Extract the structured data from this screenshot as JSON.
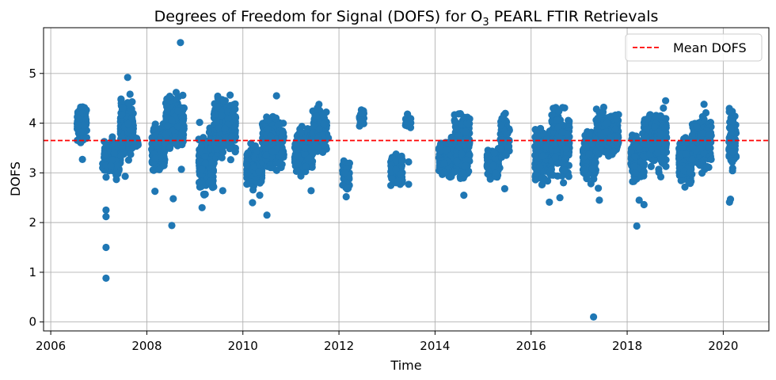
{
  "chart_data": {
    "type": "scatter",
    "title": "Degrees of Freedom for Signal (DOFS) for O₃ PEARL FTIR Retrievals",
    "title_main": "Degrees of Freedom for Signal (DOFS) for O",
    "title_sub": "3",
    "title_rest": " PEARL FTIR Retrievals",
    "xlabel": "Time",
    "ylabel": "DOFS",
    "xlim": [
      2005.85,
      2020.95
    ],
    "ylim": [
      -0.18,
      5.92
    ],
    "xticks": [
      2006,
      2008,
      2010,
      2012,
      2014,
      2016,
      2018,
      2020
    ],
    "xtick_labels": [
      "2006",
      "2008",
      "2010",
      "2012",
      "2014",
      "2016",
      "2018",
      "2020"
    ],
    "yticks": [
      0,
      1,
      2,
      3,
      4,
      5
    ],
    "ytick_labels": [
      "0",
      "1",
      "2",
      "3",
      "4",
      "5"
    ],
    "grid": true,
    "legend_position": "top-right",
    "mean_line": {
      "name": "Mean DOFS",
      "value": 3.65,
      "color": "#ff0000"
    },
    "point_color": "#1f77b4",
    "clusters": [
      {
        "x_start": 2006.55,
        "x_end": 2006.75,
        "y_min": 3.55,
        "y_max": 4.5,
        "count": 110
      },
      {
        "x_start": 2007.08,
        "x_end": 2007.45,
        "y_min": 2.8,
        "y_max": 3.8,
        "count": 150
      },
      {
        "x_start": 2007.45,
        "x_end": 2007.72,
        "y_min": 3.1,
        "y_max": 4.7,
        "count": 170
      },
      {
        "x_start": 2007.72,
        "x_end": 2007.82,
        "y_min": 3.45,
        "y_max": 3.75,
        "count": 15
      },
      {
        "x_start": 2008.1,
        "x_end": 2008.38,
        "y_min": 2.9,
        "y_max": 4.1,
        "count": 120
      },
      {
        "x_start": 2008.38,
        "x_end": 2008.78,
        "y_min": 3.3,
        "y_max": 4.75,
        "count": 190
      },
      {
        "x_start": 2009.08,
        "x_end": 2009.4,
        "y_min": 2.4,
        "y_max": 4.1,
        "count": 200
      },
      {
        "x_start": 2009.4,
        "x_end": 2009.85,
        "y_min": 3.1,
        "y_max": 4.65,
        "count": 230
      },
      {
        "x_start": 2010.08,
        "x_end": 2010.4,
        "y_min": 2.6,
        "y_max": 3.7,
        "count": 220
      },
      {
        "x_start": 2010.4,
        "x_end": 2010.85,
        "y_min": 2.9,
        "y_max": 4.3,
        "count": 220
      },
      {
        "x_start": 2011.08,
        "x_end": 2011.45,
        "y_min": 2.9,
        "y_max": 4.0,
        "count": 210
      },
      {
        "x_start": 2011.45,
        "x_end": 2011.75,
        "y_min": 3.2,
        "y_max": 4.55,
        "count": 150
      },
      {
        "x_start": 2012.08,
        "x_end": 2012.22,
        "y_min": 2.6,
        "y_max": 3.4,
        "count": 70
      },
      {
        "x_start": 2012.42,
        "x_end": 2012.52,
        "y_min": 3.85,
        "y_max": 4.35,
        "count": 40
      },
      {
        "x_start": 2013.08,
        "x_end": 2013.32,
        "y_min": 2.6,
        "y_max": 3.5,
        "count": 100
      },
      {
        "x_start": 2013.38,
        "x_end": 2013.5,
        "y_min": 3.85,
        "y_max": 4.2,
        "count": 30
      },
      {
        "x_start": 2014.08,
        "x_end": 2014.4,
        "y_min": 2.8,
        "y_max": 3.8,
        "count": 180
      },
      {
        "x_start": 2014.4,
        "x_end": 2014.72,
        "y_min": 2.7,
        "y_max": 4.45,
        "count": 210
      },
      {
        "x_start": 2015.08,
        "x_end": 2015.35,
        "y_min": 2.8,
        "y_max": 3.6,
        "count": 120
      },
      {
        "x_start": 2015.35,
        "x_end": 2015.55,
        "y_min": 3.1,
        "y_max": 4.3,
        "count": 100
      },
      {
        "x_start": 2016.08,
        "x_end": 2016.42,
        "y_min": 2.6,
        "y_max": 4.1,
        "count": 220
      },
      {
        "x_start": 2016.42,
        "x_end": 2016.8,
        "y_min": 2.7,
        "y_max": 4.5,
        "count": 230
      },
      {
        "x_start": 2017.08,
        "x_end": 2017.35,
        "y_min": 2.7,
        "y_max": 4.0,
        "count": 150
      },
      {
        "x_start": 2017.35,
        "x_end": 2017.82,
        "y_min": 3.2,
        "y_max": 4.4,
        "count": 250
      },
      {
        "x_start": 2018.08,
        "x_end": 2018.35,
        "y_min": 2.7,
        "y_max": 3.9,
        "count": 200
      },
      {
        "x_start": 2018.35,
        "x_end": 2018.82,
        "y_min": 2.9,
        "y_max": 4.45,
        "count": 270
      },
      {
        "x_start": 2019.08,
        "x_end": 2019.35,
        "y_min": 2.6,
        "y_max": 3.8,
        "count": 200
      },
      {
        "x_start": 2019.35,
        "x_end": 2019.75,
        "y_min": 2.9,
        "y_max": 4.3,
        "count": 220
      },
      {
        "x_start": 2020.12,
        "x_end": 2020.27,
        "y_min": 2.9,
        "y_max": 4.4,
        "count": 110
      }
    ],
    "outliers": [
      {
        "x": 2006.66,
        "y": 3.27
      },
      {
        "x": 2007.15,
        "y": 2.25
      },
      {
        "x": 2007.15,
        "y": 2.12
      },
      {
        "x": 2007.15,
        "y": 1.5
      },
      {
        "x": 2007.15,
        "y": 0.88
      },
      {
        "x": 2007.6,
        "y": 4.92
      },
      {
        "x": 2007.55,
        "y": 2.93
      },
      {
        "x": 2008.17,
        "y": 2.63
      },
      {
        "x": 2008.55,
        "y": 2.48
      },
      {
        "x": 2008.52,
        "y": 1.94
      },
      {
        "x": 2008.7,
        "y": 5.62
      },
      {
        "x": 2008.72,
        "y": 3.07
      },
      {
        "x": 2009.15,
        "y": 2.3
      },
      {
        "x": 2009.58,
        "y": 2.64
      },
      {
        "x": 2010.2,
        "y": 2.4
      },
      {
        "x": 2010.35,
        "y": 2.55
      },
      {
        "x": 2010.5,
        "y": 2.15
      },
      {
        "x": 2010.7,
        "y": 4.55
      },
      {
        "x": 2011.42,
        "y": 2.64
      },
      {
        "x": 2011.78,
        "y": 3.7
      },
      {
        "x": 2012.15,
        "y": 2.52
      },
      {
        "x": 2013.45,
        "y": 3.22
      },
      {
        "x": 2013.45,
        "y": 2.77
      },
      {
        "x": 2014.6,
        "y": 2.55
      },
      {
        "x": 2015.45,
        "y": 2.68
      },
      {
        "x": 2016.38,
        "y": 2.41
      },
      {
        "x": 2016.6,
        "y": 2.5
      },
      {
        "x": 2017.3,
        "y": 0.1
      },
      {
        "x": 2017.42,
        "y": 2.45
      },
      {
        "x": 2017.4,
        "y": 2.69
      },
      {
        "x": 2018.2,
        "y": 1.93
      },
      {
        "x": 2018.25,
        "y": 2.45
      },
      {
        "x": 2018.35,
        "y": 2.36
      },
      {
        "x": 2018.7,
        "y": 2.92
      },
      {
        "x": 2018.8,
        "y": 4.45
      },
      {
        "x": 2019.6,
        "y": 4.38
      },
      {
        "x": 2020.13,
        "y": 2.41
      },
      {
        "x": 2020.15,
        "y": 2.47
      }
    ]
  }
}
